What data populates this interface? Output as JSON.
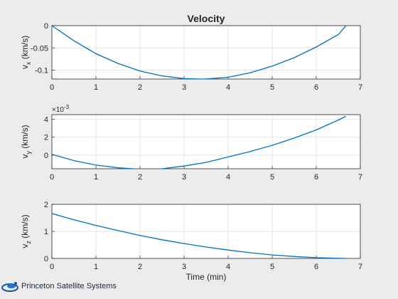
{
  "figure_title": "Velocity",
  "footer_logo_text": "Princeton Satellite Systems",
  "chart_data": [
    {
      "type": "line",
      "title": "Velocity",
      "xlabel": "",
      "ylabel": "v_x (km/s)",
      "ylabel_main": "v",
      "ylabel_sub": "x",
      "ylabel_unit": " (km/s)",
      "xlim": [
        0,
        7
      ],
      "ylim": [
        -0.12,
        0
      ],
      "xticks": [
        "0",
        "1",
        "2",
        "3",
        "4",
        "5",
        "6",
        "7"
      ],
      "xtick_values": [
        0,
        1,
        2,
        3,
        4,
        5,
        6,
        7
      ],
      "yticks": [
        "0",
        "-0.05",
        "-0.1"
      ],
      "ytick_values": [
        0,
        -0.05,
        -0.1
      ],
      "exponent_label": "",
      "grid": true,
      "color": "#0072bd",
      "series": [
        {
          "x": [
            0,
            0.5,
            1,
            1.5,
            2,
            2.5,
            3,
            3.35,
            3.5,
            4,
            4.5,
            5,
            5.5,
            6,
            6.5,
            6.67
          ],
          "values": [
            0,
            -0.034,
            -0.063,
            -0.085,
            -0.102,
            -0.113,
            -0.119,
            -0.12,
            -0.1198,
            -0.116,
            -0.106,
            -0.091,
            -0.072,
            -0.048,
            -0.02,
            -0.001
          ]
        }
      ]
    },
    {
      "type": "line",
      "title": "",
      "xlabel": "",
      "ylabel": "v_y (km/s)",
      "ylabel_main": "v",
      "ylabel_sub": "y",
      "ylabel_unit": " (km/s)",
      "xlim": [
        0,
        7
      ],
      "ylim": [
        -0.0015,
        0.0045
      ],
      "xticks": [
        "0",
        "1",
        "2",
        "3",
        "4",
        "5",
        "6",
        "7"
      ],
      "xtick_values": [
        0,
        1,
        2,
        3,
        4,
        5,
        6,
        7
      ],
      "yticks": [
        "4",
        "2",
        "0"
      ],
      "ytick_values": [
        0.004,
        0.002,
        0
      ],
      "exponent_label": "×10",
      "exponent_power": "-3",
      "grid": true,
      "color": "#0072bd",
      "series": [
        {
          "x": [
            0,
            0.5,
            1,
            1.5,
            2,
            2.2,
            2.5,
            3,
            3.5,
            4,
            4.5,
            5,
            5.5,
            6,
            6.5,
            6.67
          ],
          "values": [
            0.0001,
            -0.0006,
            -0.0011,
            -0.0014,
            -0.00155,
            -0.0016,
            -0.0015,
            -0.0012,
            -0.0008,
            -0.0002,
            0.0004,
            0.0011,
            0.0019,
            0.0028,
            0.0039,
            0.0043
          ]
        }
      ]
    },
    {
      "type": "line",
      "title": "",
      "xlabel": "Time (min)",
      "ylabel": "v_z (km/s)",
      "ylabel_main": "v",
      "ylabel_sub": "z",
      "ylabel_unit": " (km/s)",
      "xlim": [
        0,
        7
      ],
      "ylim": [
        0,
        2
      ],
      "xticks": [
        "0",
        "1",
        "2",
        "3",
        "4",
        "5",
        "6",
        "7"
      ],
      "xtick_values": [
        0,
        1,
        2,
        3,
        4,
        5,
        6,
        7
      ],
      "yticks": [
        "2",
        "1",
        "0"
      ],
      "ytick_values": [
        2,
        1,
        0
      ],
      "exponent_label": "",
      "grid": true,
      "color": "#0072bd",
      "series": [
        {
          "x": [
            0,
            0.5,
            1,
            1.5,
            2,
            2.5,
            3,
            3.5,
            4,
            4.5,
            5,
            5.5,
            6,
            6.5,
            6.67
          ],
          "values": [
            1.66,
            1.43,
            1.22,
            1.03,
            0.85,
            0.69,
            0.55,
            0.42,
            0.31,
            0.21,
            0.13,
            0.07,
            0.03,
            0.005,
            0
          ]
        }
      ]
    }
  ]
}
